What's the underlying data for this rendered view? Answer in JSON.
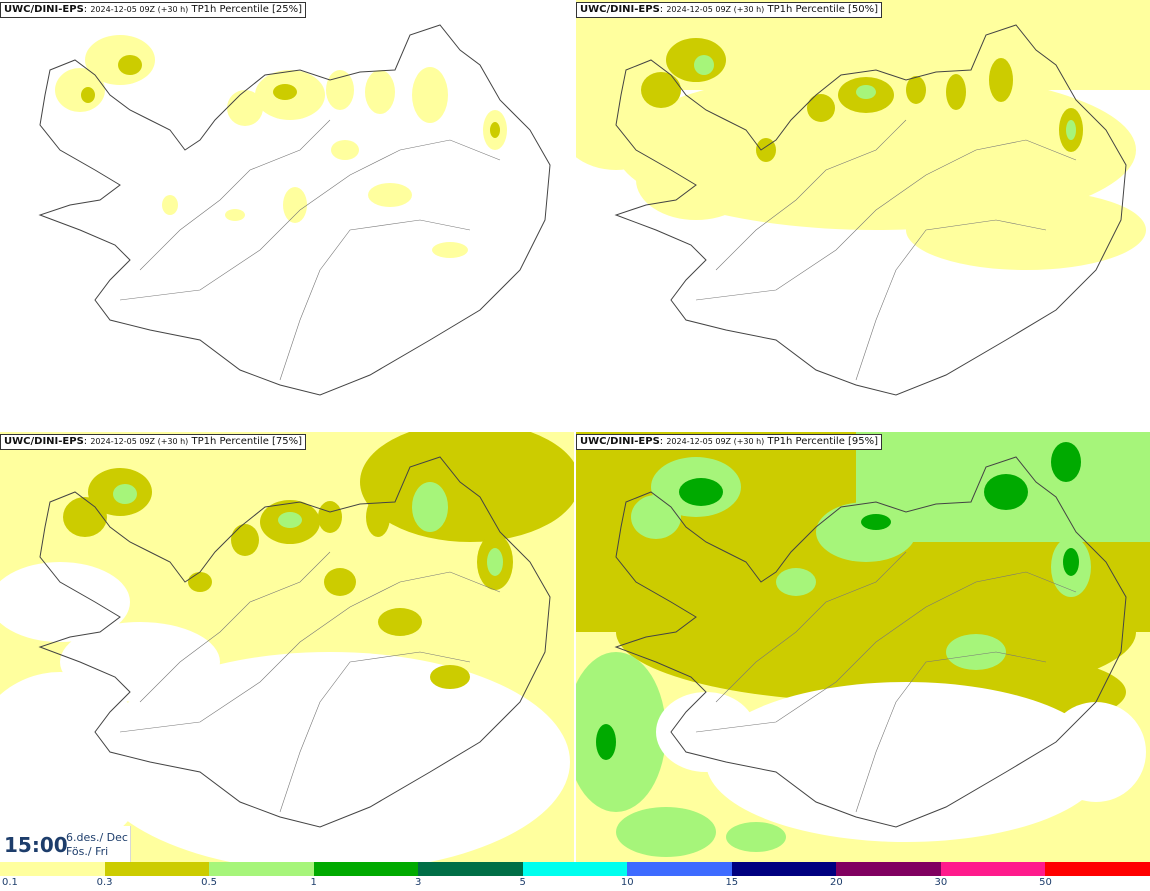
{
  "panels": [
    {
      "model": "UWC/DINI-EPS",
      "run": "2024-12-05 09Z (+30 h)",
      "field": "TP1h Percentile [25%]"
    },
    {
      "model": "UWC/DINI-EPS",
      "run": "2024-12-05 09Z (+30 h)",
      "field": "TP1h Percentile [50%]"
    },
    {
      "model": "UWC/DINI-EPS",
      "run": "2024-12-05 09Z (+30 h)",
      "field": "TP1h Percentile [75%]"
    },
    {
      "model": "UWC/DINI-EPS",
      "run": "2024-12-05 09Z (+30 h)",
      "field": "TP1h Percentile [95%]"
    }
  ],
  "valid_time": {
    "hour": "15:00",
    "date_line1": "6.des./ Dec",
    "date_line2": "Fös./ Fri"
  },
  "legend": {
    "ticks": [
      "0.1",
      "0.3",
      "0.5",
      "1",
      "3",
      "5",
      "10",
      "15",
      "20",
      "30",
      "50"
    ],
    "colors": [
      "#ffff9e",
      "#cccc00",
      "#a6f57a",
      "#00aa00",
      "#006e46",
      "#00ffee",
      "#3d6bff",
      "#000080",
      "#800060",
      "#ff1a8c",
      "#ff0000"
    ]
  }
}
